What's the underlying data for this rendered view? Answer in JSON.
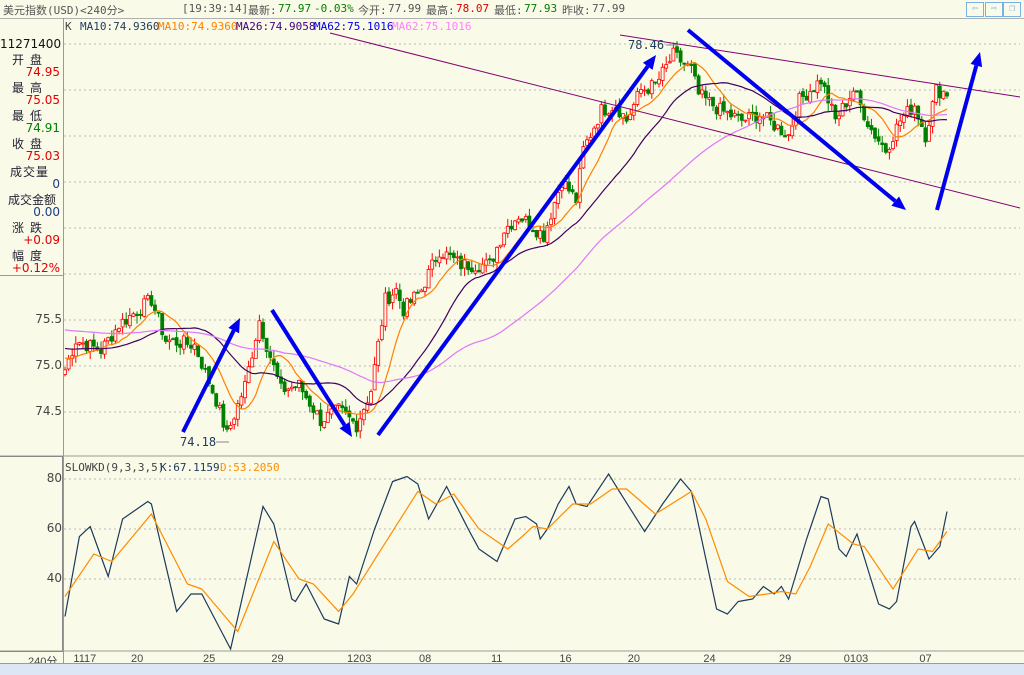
{
  "title": {
    "instrument": "美元指数(USD)<240分>",
    "time": "[19:39:14]",
    "latest_label": "最新:",
    "latest": "77.97",
    "change_pct": "-0.03%",
    "open_label": "今开:",
    "open": "77.99",
    "high_label": "最高:",
    "high": "78.07",
    "low_label": "最低:",
    "low": "77.93",
    "prev_close_label": "昨收:",
    "prev_close": "77.99"
  },
  "nav": {
    "prev_icon": "arrow-left-icon",
    "next_icon": "arrow-right-icon",
    "restore_icon": "window-restore-icon"
  },
  "ma_legend": {
    "k": "K",
    "ma10_a": "MA10:74.9360",
    "ma10_b": "MA10:74.9360",
    "ma26": "MA26:74.9058",
    "ma62_a": "MA62:75.1016",
    "ma62_b": "MA62:75.1016"
  },
  "info_panel": {
    "datetime": "11271400",
    "open_label": "开盘",
    "open": "74.95",
    "high_label": "最高",
    "high": "75.05",
    "low_label": "最低",
    "low": "74.91",
    "close_label": "收盘",
    "close": "75.03",
    "volume_label": "成交量",
    "volume": "0",
    "amount_label": "成交金额",
    "amount": "0.00",
    "change_label": "涨跌",
    "change": "+0.09",
    "range_label": "幅度",
    "range": "+0.12%"
  },
  "colors": {
    "up": "#ff0000",
    "down": "#008000",
    "ma10": "#ff8000",
    "ma26": "#400060",
    "ma62": "#dd77ff",
    "arrow": "#0000ee",
    "trend": "#800070",
    "k": "#1c3a5c",
    "d": "#ff8c00"
  },
  "chart_data": [
    {
      "type": "candlestick",
      "price_axis": {
        "ticks": [
          74.5,
          75.0,
          75.5
        ],
        "range": [
          74.0,
          78.6
        ]
      },
      "x_ticks": [
        {
          "bar": 4,
          "label": "1117"
        },
        {
          "bar": 20,
          "label": "20"
        },
        {
          "bar": 40,
          "label": "25"
        },
        {
          "bar": 59,
          "label": "29"
        },
        {
          "bar": 80,
          "label": "1203"
        },
        {
          "bar": 100,
          "label": "08"
        },
        {
          "bar": 120,
          "label": "11"
        },
        {
          "bar": 139,
          "label": "16"
        },
        {
          "bar": 158,
          "label": "20"
        },
        {
          "bar": 179,
          "label": "24"
        },
        {
          "bar": 200,
          "label": "29"
        },
        {
          "bar": 218,
          "label": "0103"
        },
        {
          "bar": 239,
          "label": "07"
        }
      ],
      "x_unit_label": "240分",
      "bar_count": 246,
      "close_path": [
        [
          0,
          74.96
        ],
        [
          3,
          75.28
        ],
        [
          10,
          75.17
        ],
        [
          15,
          75.45
        ],
        [
          24,
          75.72
        ],
        [
          28,
          75.28
        ],
        [
          36,
          75.23
        ],
        [
          42,
          74.63
        ],
        [
          45,
          74.25
        ],
        [
          50,
          74.79
        ],
        [
          54,
          75.5
        ],
        [
          56,
          75.23
        ],
        [
          60,
          74.74
        ],
        [
          65,
          74.79
        ],
        [
          71,
          74.41
        ],
        [
          76,
          74.52
        ],
        [
          81,
          74.36
        ],
        [
          85,
          74.74
        ],
        [
          89,
          75.72
        ],
        [
          92,
          75.83
        ],
        [
          94,
          75.61
        ],
        [
          99,
          75.83
        ],
        [
          104,
          76.26
        ],
        [
          110,
          76.1
        ],
        [
          118,
          76.1
        ],
        [
          122,
          76.48
        ],
        [
          126,
          76.64
        ],
        [
          133,
          76.42
        ],
        [
          138,
          77.02
        ],
        [
          142,
          76.8
        ],
        [
          144,
          77.35
        ],
        [
          149,
          77.78
        ],
        [
          153,
          77.84
        ],
        [
          156,
          77.67
        ],
        [
          160,
          78.0
        ],
        [
          164,
          78.05
        ],
        [
          169,
          78.38
        ],
        [
          174,
          78.22
        ],
        [
          176,
          77.95
        ],
        [
          182,
          77.78
        ],
        [
          188,
          77.67
        ],
        [
          193,
          77.73
        ],
        [
          201,
          77.51
        ],
        [
          204,
          77.89
        ],
        [
          210,
          78.11
        ],
        [
          214,
          77.67
        ],
        [
          219,
          78.0
        ],
        [
          224,
          77.57
        ],
        [
          228,
          77.35
        ],
        [
          232,
          77.67
        ],
        [
          236,
          77.84
        ],
        [
          239,
          77.51
        ],
        [
          242,
          78.0
        ],
        [
          245,
          77.97
        ]
      ],
      "annotations": {
        "high_label": "78.46",
        "low_label": "74.18"
      }
    },
    {
      "type": "line",
      "title": "SLOWKD(9,3,3,5)",
      "k_label": "K:67.1159",
      "d_label": "D:53.2050",
      "y_ticks": [
        40,
        60,
        80
      ],
      "k": [
        [
          0,
          25
        ],
        [
          4,
          57
        ],
        [
          7,
          61
        ],
        [
          12,
          41
        ],
        [
          16,
          64
        ],
        [
          23,
          71
        ],
        [
          24,
          70
        ],
        [
          31,
          27
        ],
        [
          35,
          34
        ],
        [
          38,
          34
        ],
        [
          46,
          12
        ],
        [
          55,
          69
        ],
        [
          58,
          62
        ],
        [
          63,
          32
        ],
        [
          64,
          31
        ],
        [
          67,
          38
        ],
        [
          72,
          24
        ],
        [
          76,
          22
        ],
        [
          79,
          41
        ],
        [
          81,
          38
        ],
        [
          86,
          60
        ],
        [
          91,
          79
        ],
        [
          95,
          81
        ],
        [
          98,
          78
        ],
        [
          101,
          64
        ],
        [
          106,
          77
        ],
        [
          112,
          60
        ],
        [
          115,
          52
        ],
        [
          119,
          48
        ],
        [
          120,
          47
        ],
        [
          125,
          64
        ],
        [
          128,
          65
        ],
        [
          131,
          62
        ],
        [
          132,
          56
        ],
        [
          134,
          60
        ],
        [
          137,
          70
        ],
        [
          140,
          77
        ],
        [
          142,
          70
        ],
        [
          145,
          69
        ],
        [
          151,
          82
        ],
        [
          154,
          75
        ],
        [
          161,
          59
        ],
        [
          166,
          70
        ],
        [
          171,
          80
        ],
        [
          174,
          75
        ],
        [
          181,
          28
        ],
        [
          184,
          26
        ],
        [
          187,
          31
        ],
        [
          191,
          32
        ],
        [
          194,
          37
        ],
        [
          197,
          34
        ],
        [
          199,
          37
        ],
        [
          201,
          32
        ],
        [
          206,
          56
        ],
        [
          210,
          73
        ],
        [
          212,
          72
        ],
        [
          215,
          52
        ],
        [
          217,
          49
        ],
        [
          220,
          58
        ],
        [
          226,
          30
        ],
        [
          229,
          28
        ],
        [
          231,
          31
        ],
        [
          235,
          61
        ],
        [
          236,
          63
        ],
        [
          240,
          48
        ],
        [
          243,
          53
        ],
        [
          245,
          67
        ]
      ],
      "d": [
        [
          0,
          33
        ],
        [
          8,
          50
        ],
        [
          13,
          47
        ],
        [
          24,
          66
        ],
        [
          34,
          38
        ],
        [
          38,
          36
        ],
        [
          48,
          19
        ],
        [
          58,
          55
        ],
        [
          65,
          40
        ],
        [
          69,
          38
        ],
        [
          76,
          27
        ],
        [
          80,
          34
        ],
        [
          87,
          50
        ],
        [
          98,
          75
        ],
        [
          103,
          70
        ],
        [
          108,
          74
        ],
        [
          115,
          60
        ],
        [
          123,
          52
        ],
        [
          127,
          57
        ],
        [
          130,
          61
        ],
        [
          134,
          60
        ],
        [
          141,
          70
        ],
        [
          146,
          70
        ],
        [
          152,
          76
        ],
        [
          156,
          76
        ],
        [
          164,
          66
        ],
        [
          174,
          75
        ],
        [
          178,
          64
        ],
        [
          184,
          39
        ],
        [
          190,
          33
        ],
        [
          195,
          34
        ],
        [
          199,
          35
        ],
        [
          203,
          34
        ],
        [
          207,
          45
        ],
        [
          212,
          62
        ],
        [
          219,
          54
        ],
        [
          222,
          53
        ],
        [
          230,
          36
        ],
        [
          237,
          52
        ],
        [
          241,
          51
        ],
        [
          245,
          59
        ]
      ]
    }
  ],
  "status_bar": {}
}
